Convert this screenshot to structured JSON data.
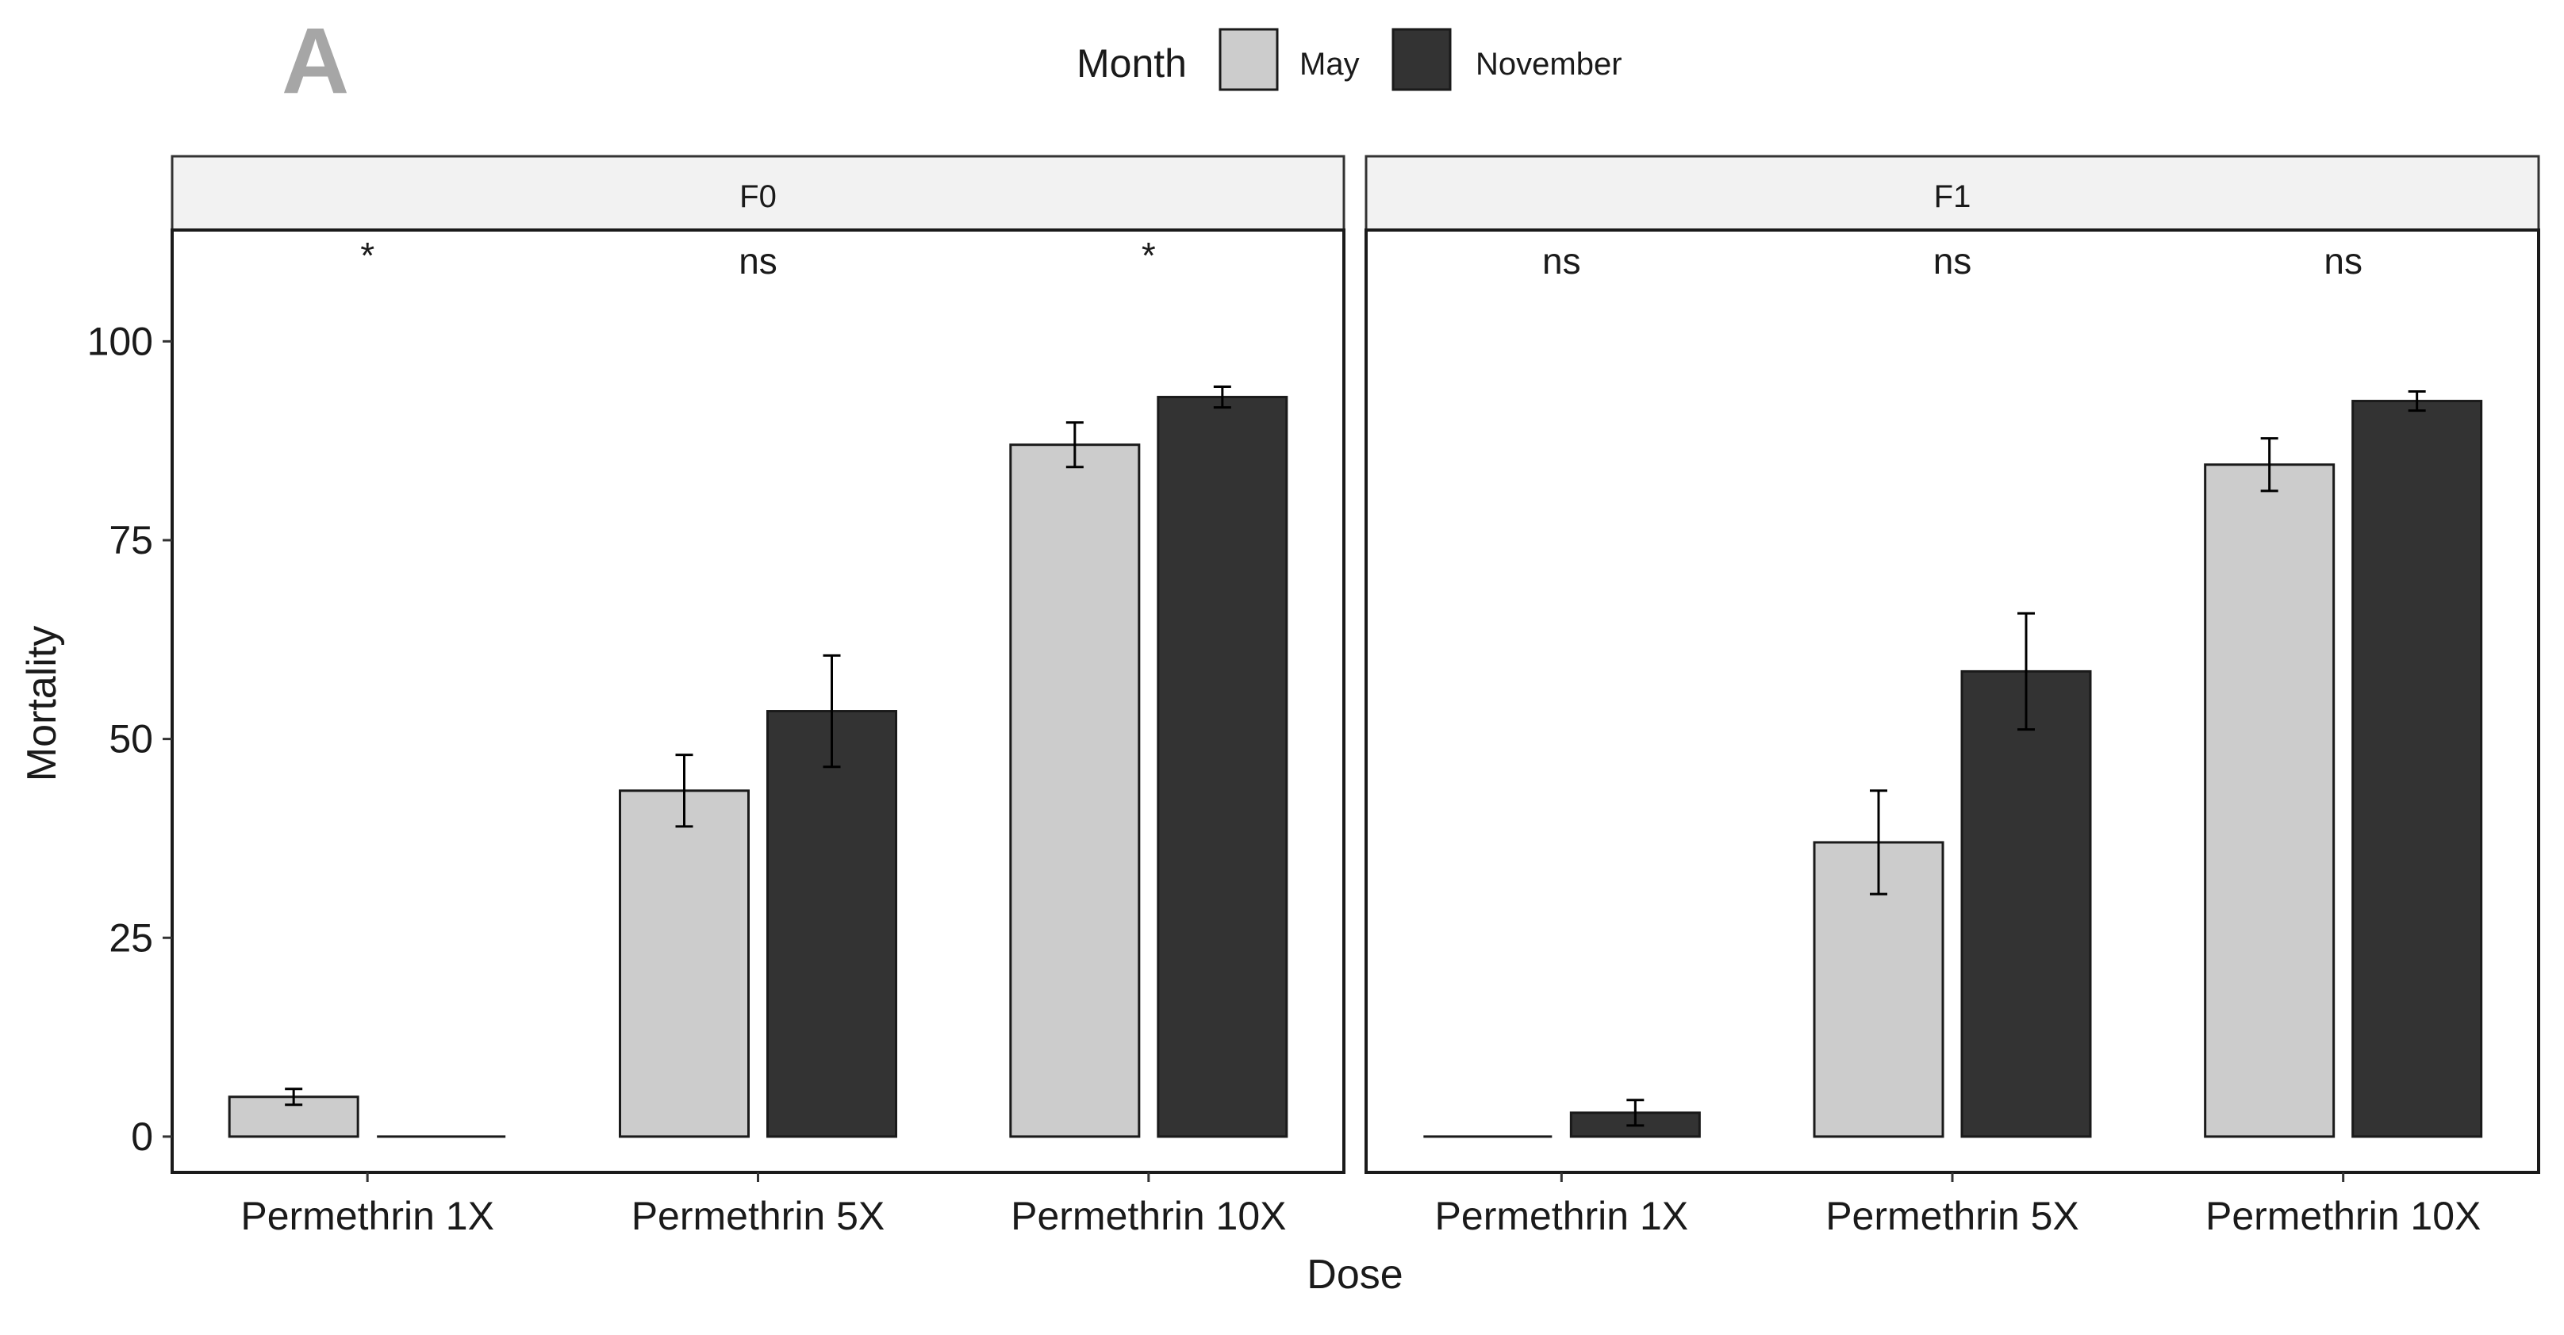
{
  "panel_label": "A",
  "legend": {
    "title": "Month",
    "items": [
      {
        "label": "May",
        "color": "#cccccc"
      },
      {
        "label": "November",
        "color": "#333333"
      }
    ]
  },
  "chart_data": {
    "type": "bar",
    "title": "",
    "xlabel": "Dose",
    "ylabel": "Mortality",
    "ylim": [
      -4.5,
      114
    ],
    "yticks": [
      0,
      25,
      50,
      75,
      100
    ],
    "ytick_labels": [
      "0",
      "25",
      "50",
      "75",
      "100"
    ],
    "categories": [
      "Permethrin 1X",
      "Permethrin 5X",
      "Permethrin 10X"
    ],
    "facets": [
      {
        "name": "F0",
        "series": [
          {
            "name": "May",
            "values": [
              5,
              43.5,
              87
            ],
            "errors": [
              1,
              4.5,
              2.8
            ]
          },
          {
            "name": "November",
            "values": [
              0,
              53.5,
              93
            ],
            "errors": [
              0,
              7,
              1.3
            ]
          }
        ],
        "significance": [
          "*",
          "ns",
          "*"
        ]
      },
      {
        "name": "F1",
        "series": [
          {
            "name": "May",
            "values": [
              0,
              37,
              84.5
            ],
            "errors": [
              0,
              6.5,
              3.3
            ]
          },
          {
            "name": "November",
            "values": [
              3,
              58.5,
              92.5
            ],
            "errors": [
              1.6,
              7.3,
              1.2
            ]
          }
        ],
        "significance": [
          "ns",
          "ns",
          "ns"
        ]
      }
    ]
  }
}
